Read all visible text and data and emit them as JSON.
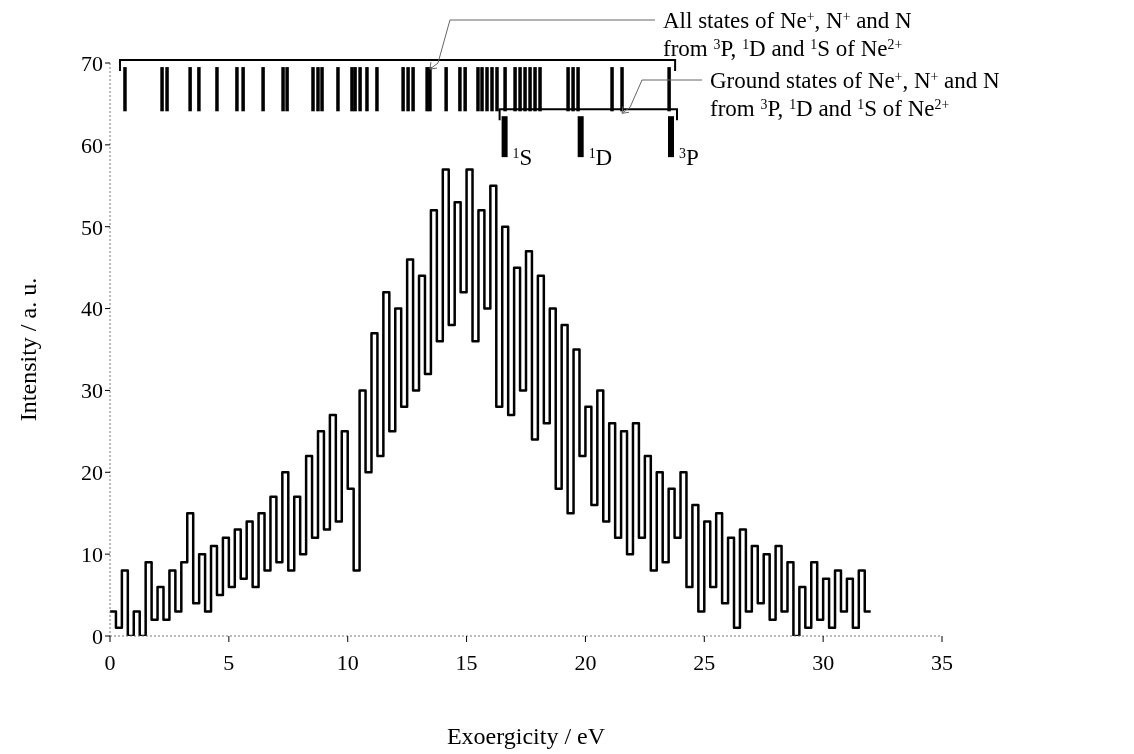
{
  "chart_data": {
    "type": "step",
    "xlabel": "Exoergicity / eV",
    "ylabel": "Intensity / a. u.",
    "xlim": [
      0,
      35
    ],
    "xticks": [
      0,
      5,
      10,
      15,
      20,
      25,
      30,
      35
    ],
    "ylim": [
      0,
      70
    ],
    "yticks": [
      0,
      10,
      20,
      30,
      40,
      50,
      60,
      70
    ],
    "grid": false,
    "legend": false,
    "marker": "none",
    "series": [
      {
        "color": "#000000",
        "x": [
          0,
          0.25,
          0.5,
          0.75,
          1,
          1.25,
          1.5,
          1.75,
          2,
          2.25,
          2.5,
          2.75,
          3,
          3.25,
          3.5,
          3.75,
          4,
          4.25,
          4.5,
          4.75,
          5,
          5.25,
          5.5,
          5.75,
          6,
          6.25,
          6.5,
          6.75,
          7,
          7.25,
          7.5,
          7.75,
          8,
          8.25,
          8.5,
          8.75,
          9,
          9.25,
          9.5,
          9.75,
          10,
          10.25,
          10.5,
          10.75,
          11,
          11.25,
          11.5,
          11.75,
          12,
          12.25,
          12.5,
          12.75,
          13,
          13.25,
          13.5,
          13.75,
          14,
          14.25,
          14.5,
          14.75,
          15,
          15.25,
          15.5,
          15.75,
          16,
          16.25,
          16.5,
          16.75,
          17,
          17.25,
          17.5,
          17.75,
          18,
          18.25,
          18.5,
          18.75,
          19,
          19.25,
          19.5,
          19.75,
          20,
          20.25,
          20.5,
          20.75,
          21,
          21.25,
          21.5,
          21.75,
          22,
          22.25,
          22.5,
          22.75,
          23,
          23.25,
          23.5,
          23.75,
          24,
          24.25,
          24.5,
          24.75,
          25,
          25.25,
          25.5,
          25.75,
          26,
          26.25,
          26.5,
          26.75,
          27,
          27.25,
          27.5,
          27.75,
          28,
          28.25,
          28.5,
          28.75,
          29,
          29.25,
          29.5,
          29.75,
          30,
          30.25,
          30.5,
          30.75,
          31,
          31.25,
          31.5,
          31.75,
          32
        ],
        "values": [
          3,
          1,
          8,
          0,
          3,
          0,
          9,
          2,
          6,
          2,
          8,
          3,
          9,
          15,
          4,
          10,
          3,
          11,
          5,
          12,
          6,
          13,
          7,
          14,
          6,
          15,
          8,
          17,
          9,
          20,
          8,
          17,
          10,
          22,
          12,
          25,
          13,
          27,
          14,
          25,
          18,
          8,
          30,
          20,
          37,
          22,
          42,
          25,
          40,
          28,
          46,
          30,
          44,
          32,
          52,
          36,
          57,
          38,
          53,
          42,
          57,
          36,
          52,
          40,
          55,
          28,
          50,
          27,
          45,
          30,
          47,
          24,
          44,
          26,
          40,
          18,
          38,
          15,
          35,
          22,
          28,
          16,
          30,
          14,
          26,
          12,
          25,
          10,
          26,
          12,
          22,
          8,
          20,
          9,
          18,
          12,
          20,
          6,
          16,
          3,
          14,
          6,
          15,
          4,
          12,
          1,
          13,
          3,
          11,
          4,
          10,
          2,
          11,
          3,
          9,
          0,
          6,
          1,
          9,
          2,
          7,
          1,
          8,
          3,
          7,
          1,
          8,
          3,
          3
        ]
      },
      {
        "type": "bar",
        "color": "#000000",
        "x": [
          0.63,
          2.19,
          2.4,
          3.37,
          3.74,
          4.5,
          5.34,
          5.6,
          6.44,
          7.28,
          7.45,
          8.54,
          8.75,
          8.92,
          9.59,
          10.18,
          10.31,
          10.52,
          10.81,
          11.23,
          12.33,
          12.54,
          12.75,
          13.34,
          13.46,
          14.14,
          14.72,
          14.94,
          15.48,
          15.65,
          15.86,
          16.07,
          16.28,
          16.62,
          17.04,
          17.25,
          17.46,
          17.67,
          17.88,
          18.09,
          19.27,
          19.48,
          19.69,
          21.12,
          21.54,
          23.52
        ],
        "base": [
          64.1,
          64.1,
          64.1,
          64.1,
          64.1,
          64.1,
          64.1,
          64.1,
          64.1,
          64.1,
          64.1,
          64.1,
          64.1,
          64.1,
          64.1,
          64.1,
          64.1,
          64.1,
          64.1,
          64.1,
          64.1,
          64.1,
          64.1,
          64.1,
          64.1,
          64.1,
          64.1,
          64.1,
          64.1,
          64.1,
          64.1,
          64.1,
          64.1,
          64.1,
          64.1,
          64.1,
          64.1,
          64.1,
          64.1,
          64.1,
          64.1,
          64.1,
          64.1,
          64.1,
          64.1,
          64.1
        ],
        "values": [
          5.4,
          5.4,
          5.4,
          5.4,
          5.4,
          5.4,
          5.4,
          5.4,
          5.4,
          5.4,
          5.4,
          5.4,
          5.4,
          5.4,
          5.4,
          5.4,
          5.4,
          5.4,
          5.4,
          5.4,
          5.4,
          5.4,
          5.4,
          5.4,
          5.4,
          5.4,
          5.4,
          5.4,
          5.4,
          5.4,
          5.4,
          5.4,
          5.4,
          5.4,
          5.4,
          5.4,
          5.4,
          5.4,
          5.4,
          5.4,
          5.4,
          5.4,
          5.4,
          5.4,
          5.4,
          5.4
        ]
      },
      {
        "type": "bar",
        "color": "#000000",
        "x": [
          16.6,
          19.8,
          23.6
        ],
        "base": [
          58.5,
          58.5,
          58.5
        ],
        "values": [
          5,
          5,
          5
        ]
      }
    ],
    "annotations": [
      {
        "text": "All states of Ne$^{+}$, N$^{+}$ and N",
        "x": 13.46,
        "y": 69.5
      },
      "from $^{3}$P, $^{1}$D and $^{1}$S of Ne$^{2+}$",
      {
        "text": "Ground states of Ne$^{+}$, N$^{+}$ and N",
        "x": 21.54,
        "y": 64.1
      },
      "from $^{3}$P, $^{1}$D and $^{1}$S of Ne$^{2+}$",
      {
        "text": "$^{1}$S",
        "x": 16.6,
        "y": 61
      },
      {
        "text": "$^{1}$D",
        "x": 19.8,
        "y": 61
      },
      {
        "text": "$^{3}$P",
        "x": 23.6,
        "y": 61
      }
    ]
  }
}
